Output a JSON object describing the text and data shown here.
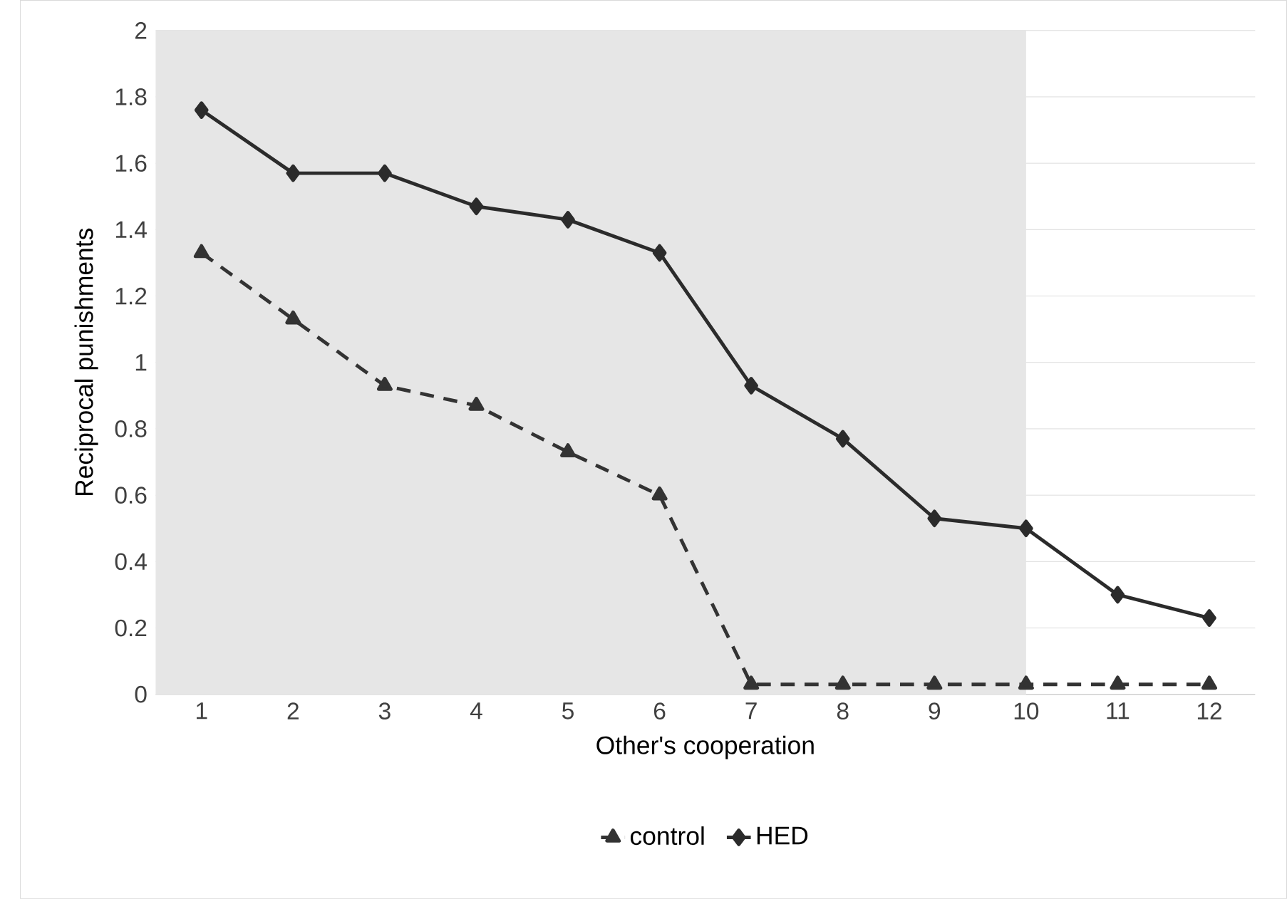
{
  "chart_data": {
    "type": "line",
    "xlabel": "Other's cooperation",
    "ylabel": "Reciprocal punishments",
    "x": [
      1,
      2,
      3,
      4,
      5,
      6,
      7,
      8,
      9,
      10,
      11,
      12
    ],
    "xlim": [
      0.5,
      12.5
    ],
    "xticks": [
      1,
      2,
      3,
      4,
      5,
      6,
      7,
      8,
      9,
      10,
      11,
      12
    ],
    "ylim": [
      0,
      2
    ],
    "yticks": [
      0,
      0.2,
      0.4,
      0.6,
      0.8,
      1,
      1.2,
      1.4,
      1.6,
      1.8,
      2
    ],
    "grid": "y",
    "legend": "bottom",
    "bands": [
      {
        "axis": "x",
        "from": 0.5,
        "to": 10,
        "color": "#e6e6e6"
      }
    ],
    "series": [
      {
        "name": "control",
        "color": "#333333",
        "marker": "triangle",
        "line_style": "dashed",
        "values": [
          1.33,
          1.13,
          0.93,
          0.87,
          0.73,
          0.6,
          0.03,
          0.03,
          0.03,
          0.03,
          0.03,
          0.03
        ]
      },
      {
        "name": "HED",
        "color": "#2b2b2b",
        "marker": "diamond",
        "line_style": "solid",
        "values": [
          1.76,
          1.57,
          1.57,
          1.47,
          1.43,
          1.33,
          0.93,
          0.77,
          0.53,
          0.5,
          0.3,
          0.23
        ]
      }
    ]
  }
}
